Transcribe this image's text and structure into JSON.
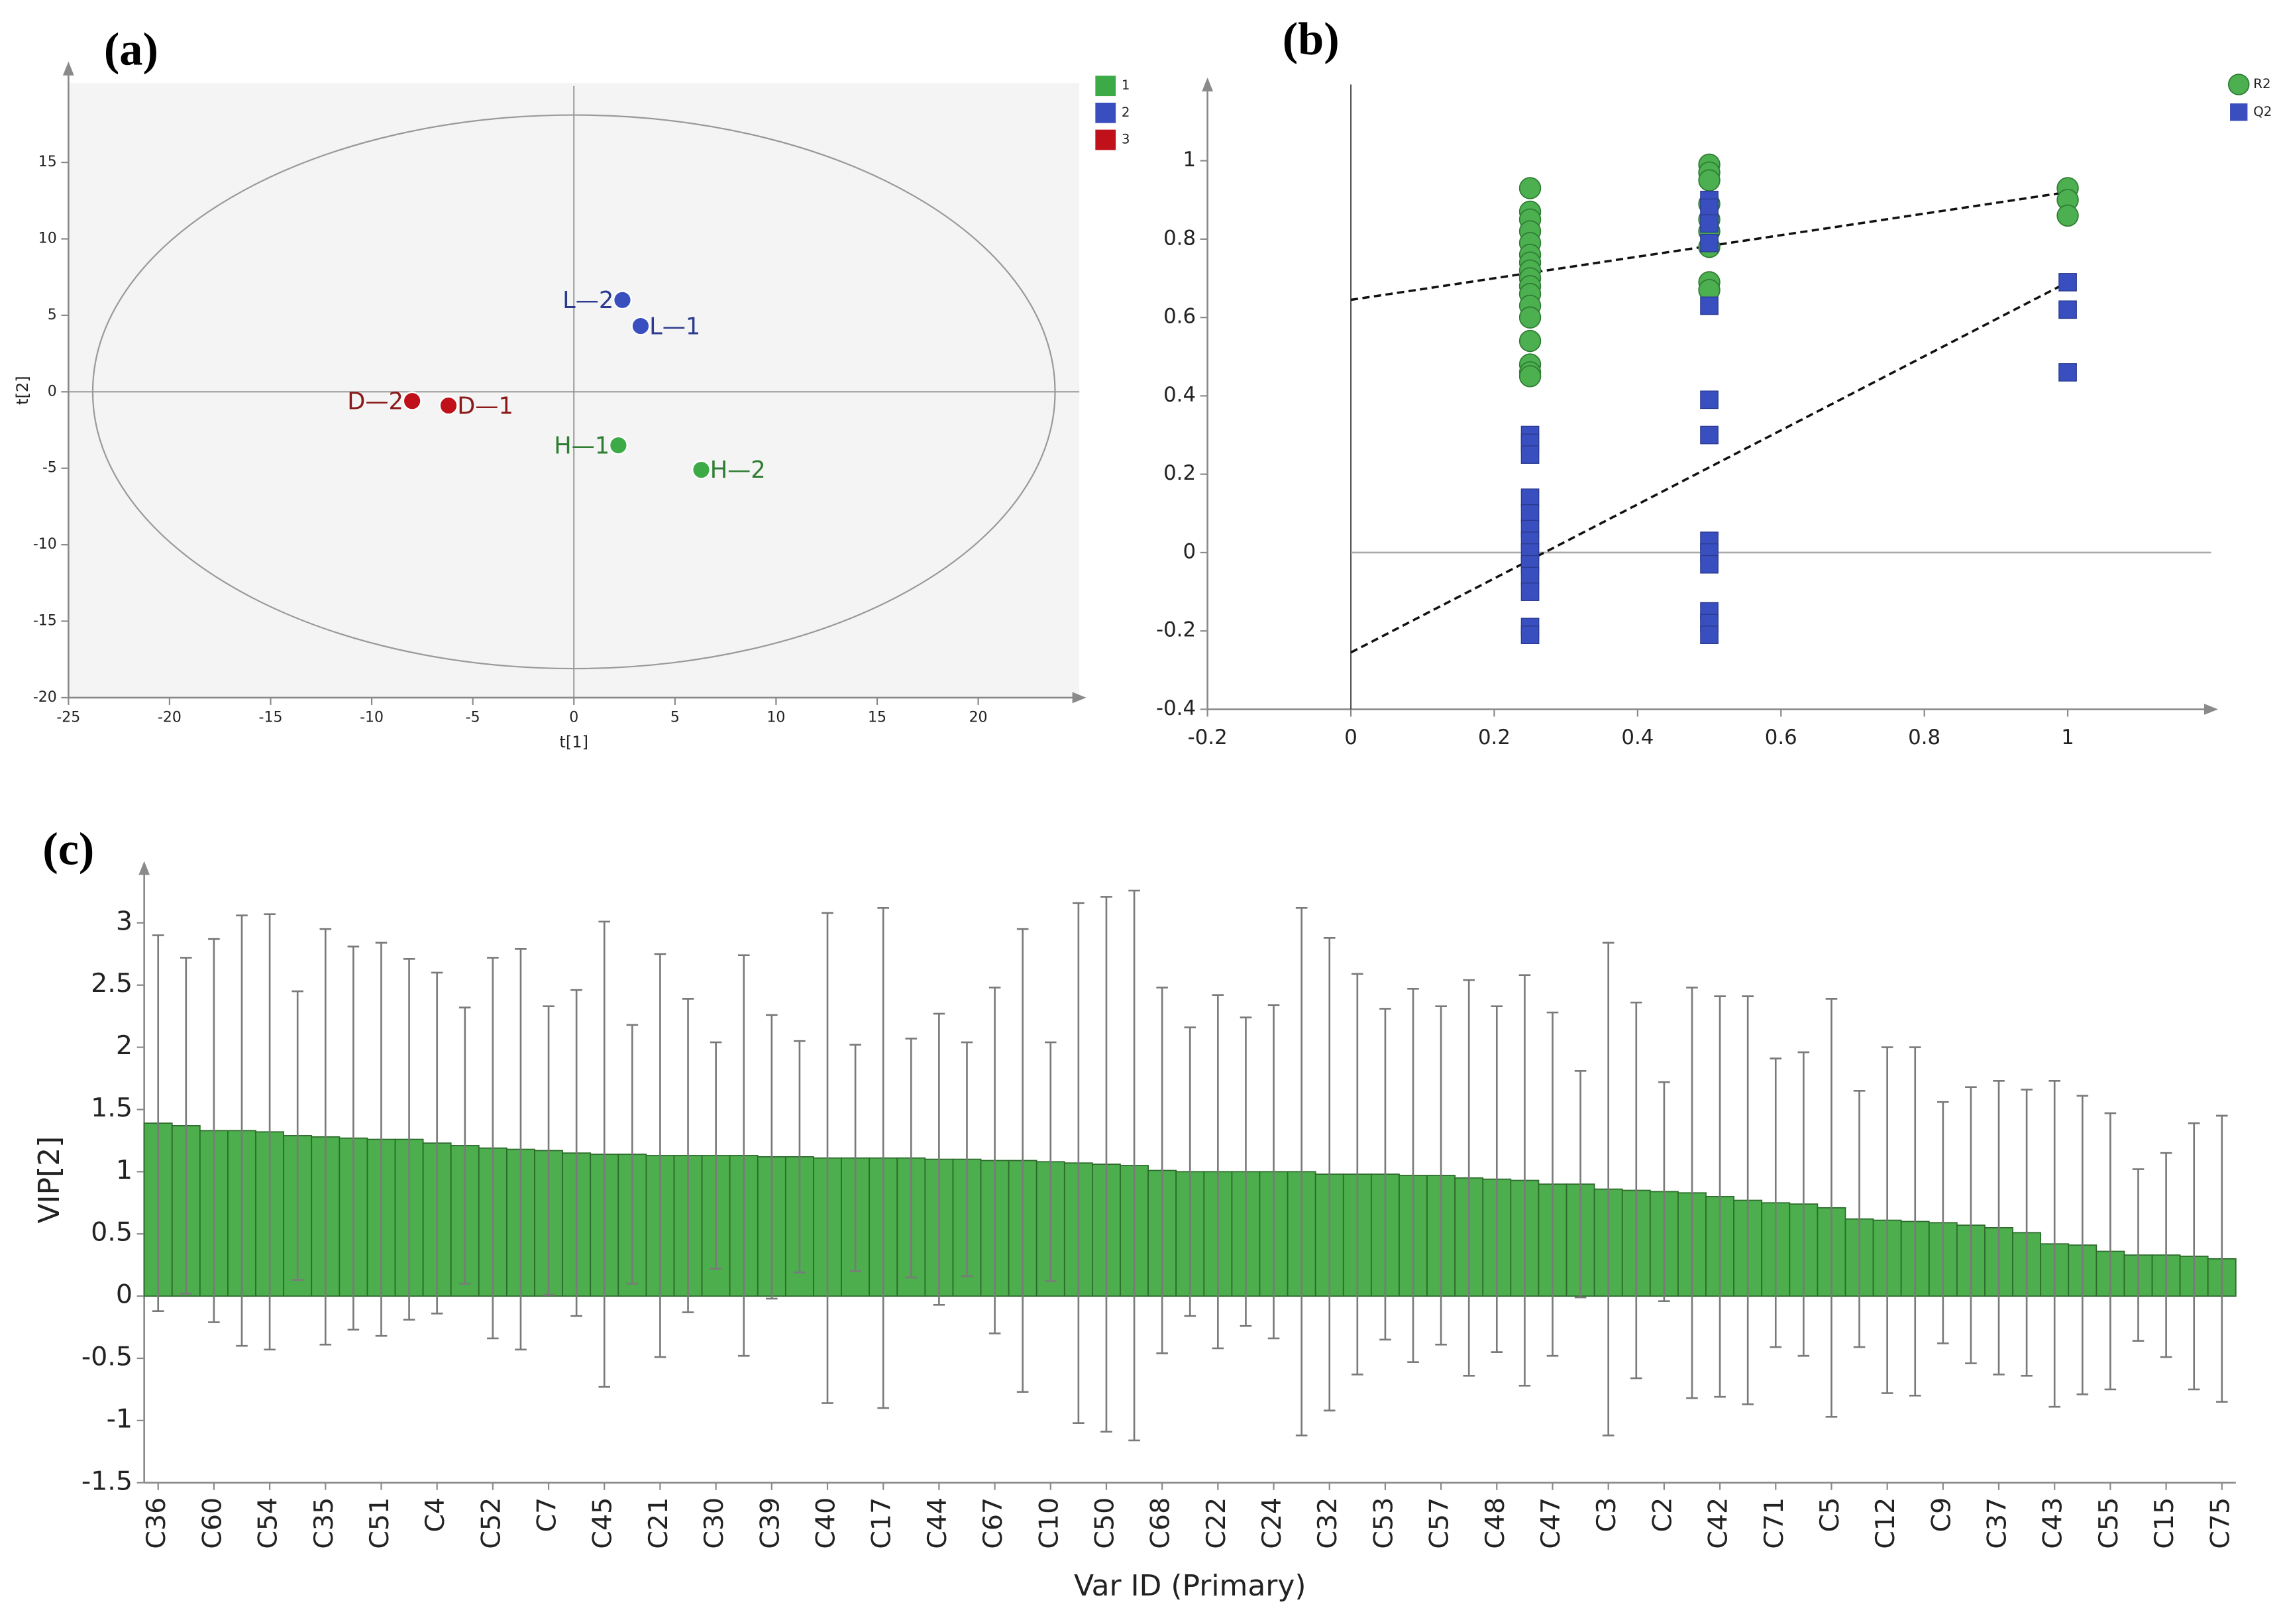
{
  "chart_data": [
    {
      "type": "scatter",
      "panel_label": "(a)",
      "xlabel": "t[1]",
      "ylabel": "t[2]",
      "xlim": [
        -25,
        25
      ],
      "ylim": [
        -20,
        20
      ],
      "xticks": [
        -25,
        -20,
        -15,
        -10,
        -5,
        0,
        5,
        10,
        15,
        20
      ],
      "yticks": [
        -20,
        -15,
        -10,
        -5,
        0,
        5,
        10,
        15
      ],
      "ellipse": {
        "rx": 23.8,
        "ry": 18.1
      },
      "series": [
        {
          "name": "1",
          "color": "#3daa48",
          "marker": "circle",
          "x": [
            2.2,
            6.3
          ],
          "values": [
            -3.5,
            -5.1
          ],
          "labels": [
            "H—1",
            "H—2"
          ],
          "label_color": "#2e7d32"
        },
        {
          "name": "2",
          "color": "#3a4fbf",
          "marker": "circle",
          "x": [
            2.4,
            3.3
          ],
          "values": [
            6.0,
            4.3
          ],
          "labels": [
            "L—2",
            "L—1"
          ],
          "label_color": "#2b3a8f"
        },
        {
          "name": "3",
          "color": "#c0101a",
          "marker": "circle",
          "x": [
            -8.0,
            -6.2
          ],
          "values": [
            -0.6,
            -0.9
          ],
          "labels": [
            "D—2",
            "D—1"
          ],
          "label_color": "#8b1a1a"
        }
      ]
    },
    {
      "type": "scatter",
      "panel_label": "(b)",
      "xlim": [
        -0.2,
        1.2
      ],
      "ylim": [
        -0.4,
        1.15
      ],
      "xticks": [
        -0.2,
        0,
        0.2,
        0.4,
        0.6,
        0.8,
        1
      ],
      "yticks": [
        -0.4,
        -0.2,
        0,
        0.2,
        0.4,
        0.6,
        0.8,
        1
      ],
      "series": [
        {
          "name": "R2",
          "color": "#4caf50",
          "marker": "circle",
          "x": [
            0.25,
            0.25,
            0.25,
            0.25,
            0.25,
            0.25,
            0.25,
            0.25,
            0.25,
            0.25,
            0.25,
            0.25,
            0.25,
            0.25,
            0.25,
            0.25,
            0.25,
            0.5,
            0.5,
            0.5,
            0.5,
            0.5,
            0.5,
            0.5,
            0.5,
            0.5,
            1,
            1,
            1
          ],
          "values": [
            0.93,
            0.87,
            0.85,
            0.82,
            0.79,
            0.76,
            0.74,
            0.72,
            0.7,
            0.68,
            0.66,
            0.63,
            0.6,
            0.54,
            0.48,
            0.46,
            0.45,
            0.99,
            0.97,
            0.95,
            0.89,
            0.85,
            0.82,
            0.78,
            0.69,
            0.67,
            0.93,
            0.9,
            0.86
          ]
        },
        {
          "name": "Q2",
          "color": "#3a4fbf",
          "marker": "square",
          "x": [
            0.25,
            0.25,
            0.25,
            0.25,
            0.25,
            0.25,
            0.25,
            0.25,
            0.25,
            0.25,
            0.25,
            0.25,
            0.25,
            0.5,
            0.5,
            0.5,
            0.5,
            0.5,
            0.5,
            0.5,
            0.5,
            0.5,
            0.5,
            0.5,
            0.5,
            0.5,
            1,
            1,
            1
          ],
          "values": [
            0.3,
            0.28,
            0.25,
            0.14,
            0.1,
            0.06,
            0.03,
            0.0,
            -0.03,
            -0.06,
            -0.1,
            -0.19,
            -0.21,
            0.9,
            0.88,
            0.84,
            0.79,
            0.63,
            0.39,
            0.3,
            0.03,
            0.0,
            -0.03,
            -0.15,
            -0.18,
            -0.21,
            0.69,
            0.62,
            0.46
          ]
        }
      ],
      "trend_lines": [
        {
          "x": [
            0,
            1
          ],
          "values": [
            0.645,
            0.92
          ]
        },
        {
          "x": [
            0,
            1
          ],
          "values": [
            -0.255,
            0.69
          ]
        }
      ]
    },
    {
      "type": "bar",
      "panel_label": "(c)",
      "xlabel": "Var ID (Primary)",
      "ylabel": "VIP[2]",
      "color": "#4cae4c",
      "ylim": [
        -1.5,
        3.3
      ],
      "yticks": [
        -1.5,
        -1,
        -0.5,
        0,
        0.5,
        1,
        1.5,
        2,
        2.5,
        3
      ],
      "categories": [
        "C36",
        null,
        "C60",
        null,
        "C54",
        null,
        "C35",
        null,
        "C51",
        null,
        "C4",
        null,
        "C52",
        null,
        "C7",
        null,
        "C45",
        null,
        "C21",
        null,
        "C30",
        null,
        "C39",
        null,
        "C40",
        null,
        "C17",
        null,
        "C44",
        null,
        "C67",
        null,
        "C10",
        null,
        "C50",
        null,
        "C68",
        null,
        "C22",
        null,
        "C24",
        null,
        "C32",
        null,
        "C53",
        null,
        "C57",
        null,
        "C48",
        null,
        "C47",
        null,
        "C3",
        null,
        "C2",
        null,
        "C42",
        null,
        "C71",
        null,
        "C5",
        null,
        "C12",
        null,
        "C9",
        null,
        "C37",
        null,
        "C43",
        null,
        "C55",
        null,
        "C15",
        null,
        "C75"
      ],
      "values": [
        1.39,
        1.37,
        1.33,
        1.33,
        1.32,
        1.29,
        1.28,
        1.27,
        1.26,
        1.26,
        1.23,
        1.21,
        1.19,
        1.18,
        1.17,
        1.15,
        1.14,
        1.14,
        1.13,
        1.13,
        1.13,
        1.13,
        1.12,
        1.12,
        1.11,
        1.11,
        1.11,
        1.11,
        1.1,
        1.1,
        1.09,
        1.09,
        1.08,
        1.07,
        1.06,
        1.05,
        1.01,
        1.0,
        1.0,
        1.0,
        1.0,
        1.0,
        0.98,
        0.98,
        0.98,
        0.97,
        0.97,
        0.95,
        0.94,
        0.93,
        0.9,
        0.9,
        0.86,
        0.85,
        0.84,
        0.83,
        0.8,
        0.77,
        0.75,
        0.74,
        0.71,
        0.62,
        0.61,
        0.6,
        0.59,
        0.57,
        0.55,
        0.51,
        0.42,
        0.41,
        0.36,
        0.33,
        0.33,
        0.32,
        0.3
      ],
      "errors": [
        1.51,
        1.35,
        1.54,
        1.73,
        1.75,
        1.16,
        1.67,
        1.54,
        1.58,
        1.45,
        1.37,
        1.11,
        1.53,
        1.61,
        1.16,
        1.31,
        1.87,
        1.04,
        1.62,
        1.26,
        0.91,
        1.61,
        1.14,
        0.93,
        1.97,
        0.91,
        2.01,
        0.96,
        1.17,
        0.94,
        1.39,
        1.86,
        0.96,
        2.09,
        2.15,
        2.21,
        1.47,
        1.16,
        1.42,
        1.24,
        1.34,
        2.12,
        1.9,
        1.61,
        1.33,
        1.5,
        1.36,
        1.59,
        1.39,
        1.65,
        1.38,
        0.91,
        1.98,
        1.51,
        0.88,
        1.65,
        1.61,
        1.64,
        1.16,
        1.22,
        1.68,
        1.03,
        1.39,
        1.4,
        0.97,
        1.11,
        1.18,
        1.15,
        1.31,
        1.2,
        1.11,
        0.69,
        0.82,
        1.07,
        1.15
      ]
    }
  ]
}
